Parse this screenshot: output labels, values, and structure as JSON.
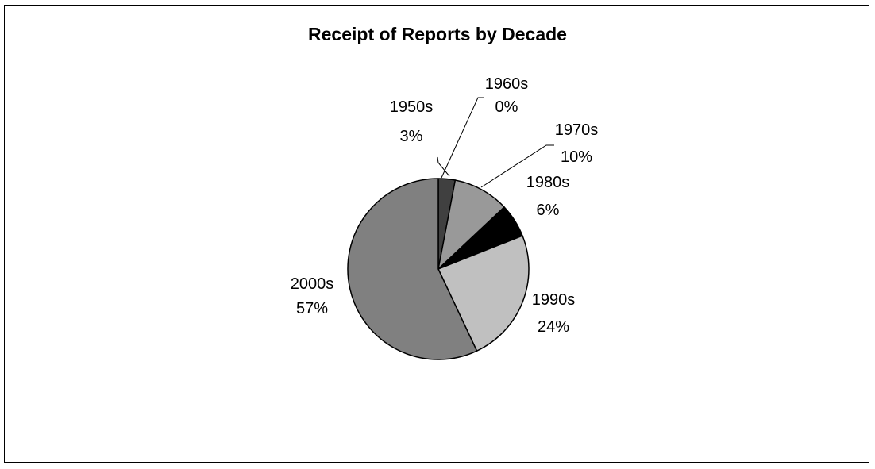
{
  "chart_data": {
    "type": "pie",
    "title": "Receipt of Reports by Decade",
    "categories": [
      "1950s",
      "1960s",
      "1970s",
      "1980s",
      "1990s",
      "2000s"
    ],
    "values": [
      3,
      0,
      10,
      6,
      24,
      57
    ],
    "labels": [
      "3%",
      "0%",
      "10%",
      "6%",
      "24%",
      "57%"
    ],
    "start_angle_deg": 0,
    "direction": "clockwise",
    "legend": "none",
    "slice_colors": [
      "#404040",
      "#cccccc",
      "#999999",
      "#000000",
      "#c0c0c0",
      "#808080"
    ],
    "stroke_color": "#000000"
  }
}
